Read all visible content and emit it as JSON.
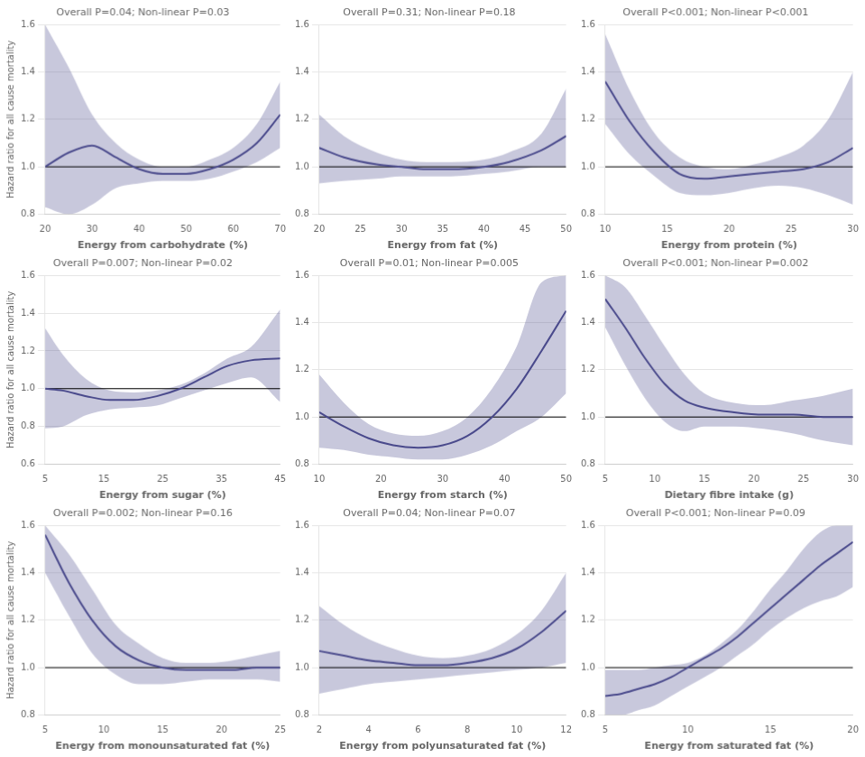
{
  "chart_data": [
    {
      "type": "line",
      "title": "Overall P=0.04; Non-linear P=0.03",
      "xlabel": "Energy from carbohydrate (%)",
      "ylabel": "Hazard ratio for all cause mortality",
      "x": [
        20,
        25,
        30,
        35,
        40,
        45,
        50,
        55,
        60,
        65,
        70
      ],
      "values": [
        1.0,
        1.06,
        1.09,
        1.04,
        0.99,
        0.97,
        0.97,
        0.99,
        1.03,
        1.1,
        1.22
      ],
      "ci_upper": [
        1.6,
        1.42,
        1.22,
        1.1,
        1.03,
        1.0,
        1.0,
        1.03,
        1.08,
        1.18,
        1.36
      ],
      "ci_lower": [
        0.83,
        0.8,
        0.84,
        0.91,
        0.93,
        0.94,
        0.94,
        0.95,
        0.98,
        1.02,
        1.08
      ],
      "color": "#4a4a8c",
      "reference_line": 1.0,
      "xlim": [
        20,
        70
      ],
      "xticks": [
        20,
        30,
        40,
        50,
        60,
        70
      ],
      "ylim": [
        0.8,
        1.6
      ],
      "yticks": [
        0.8,
        {
          "value": 1.0,
          "label": "1.0"
        },
        1.2,
        1.4,
        1.6
      ],
      "grid": "y"
    },
    {
      "type": "line",
      "title": "Overall P=0.31; Non-linear P=0.18",
      "xlabel": "Energy from fat (%)",
      "x": [
        20,
        23,
        27,
        30,
        33,
        36,
        40,
        43,
        47,
        50
      ],
      "values": [
        1.08,
        1.04,
        1.01,
        1.0,
        0.99,
        0.99,
        1.0,
        1.02,
        1.07,
        1.13
      ],
      "ci_upper": [
        1.22,
        1.13,
        1.06,
        1.03,
        1.02,
        1.02,
        1.03,
        1.06,
        1.14,
        1.33
      ],
      "ci_lower": [
        0.93,
        0.94,
        0.95,
        0.96,
        0.96,
        0.96,
        0.97,
        0.98,
        1.0,
        1.0
      ],
      "color": "#4a4a8c",
      "reference_line": 1.0,
      "xlim": [
        20,
        50
      ],
      "xticks": [
        20,
        25,
        30,
        35,
        40,
        45,
        50
      ],
      "ylim": [
        0.8,
        1.6
      ],
      "yticks": [
        0.8,
        {
          "value": 1.0,
          "label": "1.0"
        },
        1.2,
        1.4,
        1.6
      ],
      "grid": "y"
    },
    {
      "type": "line",
      "title": "Overall P<0.001; Non-linear P<0.001",
      "xlabel": "Energy from protein (%)",
      "x": [
        10,
        12,
        14,
        16,
        18,
        20,
        22,
        24,
        26,
        28,
        30
      ],
      "values": [
        1.36,
        1.19,
        1.06,
        0.97,
        0.95,
        0.96,
        0.97,
        0.98,
        0.99,
        1.02,
        1.08
      ],
      "ci_upper": [
        1.56,
        1.32,
        1.14,
        1.04,
        1.0,
        0.99,
        1.01,
        1.04,
        1.09,
        1.2,
        1.4
      ],
      "ci_lower": [
        1.18,
        1.05,
        0.96,
        0.89,
        0.88,
        0.89,
        0.91,
        0.92,
        0.91,
        0.88,
        0.84
      ],
      "color": "#4a4a8c",
      "reference_line": 1.0,
      "xlim": [
        10,
        30
      ],
      "xticks": [
        10,
        15,
        20,
        25,
        30
      ],
      "ylim": [
        0.8,
        1.6
      ],
      "yticks": [
        0.8,
        {
          "value": 1.0,
          "label": "1.0"
        },
        1.2,
        1.4,
        1.6
      ],
      "grid": "y"
    },
    {
      "type": "line",
      "title": "Overall P=0.007; Non-linear P=0.02",
      "xlabel": "Energy from sugar (%)",
      "ylabel": "Hazard ratio for all cause mortality",
      "x": [
        5,
        8,
        12,
        16,
        20,
        24,
        28,
        32,
        36,
        40,
        45
      ],
      "values": [
        1.0,
        0.99,
        0.96,
        0.94,
        0.94,
        0.96,
        1.0,
        1.06,
        1.12,
        1.15,
        1.16
      ],
      "ci_upper": [
        1.32,
        1.18,
        1.05,
        0.99,
        0.98,
        0.99,
        1.02,
        1.08,
        1.16,
        1.22,
        1.42
      ],
      "ci_lower": [
        0.79,
        0.8,
        0.86,
        0.89,
        0.9,
        0.91,
        0.95,
        0.99,
        1.03,
        1.06,
        0.93
      ],
      "color": "#4a4a8c",
      "reference_line": 1.0,
      "xlim": [
        5,
        45
      ],
      "xticks": [
        5,
        15,
        25,
        35,
        45
      ],
      "ylim": [
        0.6,
        1.6
      ],
      "yticks": [
        0.6,
        0.8,
        {
          "value": 1.0,
          "label": "1.0"
        },
        1.2,
        1.4,
        1.6
      ],
      "grid": "y"
    },
    {
      "type": "line",
      "title": "Overall P=0.01; Non-linear P=0.005",
      "xlabel": "Energy from starch (%)",
      "x": [
        10,
        14,
        18,
        22,
        26,
        30,
        34,
        38,
        42,
        46,
        50
      ],
      "values": [
        1.02,
        0.96,
        0.91,
        0.88,
        0.87,
        0.88,
        0.92,
        1.0,
        1.12,
        1.28,
        1.45
      ],
      "ci_upper": [
        1.18,
        1.06,
        0.97,
        0.93,
        0.92,
        0.94,
        1.0,
        1.12,
        1.3,
        1.57,
        1.6
      ],
      "ci_lower": [
        0.87,
        0.86,
        0.84,
        0.83,
        0.82,
        0.82,
        0.84,
        0.88,
        0.94,
        1.0,
        1.1
      ],
      "color": "#4a4a8c",
      "reference_line": 1.0,
      "xlim": [
        10,
        50
      ],
      "xticks": [
        10,
        20,
        30,
        40,
        50
      ],
      "ylim": [
        0.8,
        1.6
      ],
      "yticks": [
        0.8,
        {
          "value": 1.0,
          "label": "1.0"
        },
        1.2,
        1.4,
        1.6
      ],
      "grid": "y"
    },
    {
      "type": "line",
      "title": "Overall P<0.001; Non-linear P=0.002",
      "xlabel": "Dietary fibre intake (g)",
      "x": [
        5,
        7,
        9,
        11,
        13,
        15,
        18,
        21,
        24,
        27,
        30
      ],
      "values": [
        1.5,
        1.38,
        1.25,
        1.14,
        1.07,
        1.04,
        1.02,
        1.01,
        1.01,
        1.0,
        1.0
      ],
      "ci_upper": [
        1.6,
        1.55,
        1.43,
        1.3,
        1.18,
        1.1,
        1.06,
        1.05,
        1.07,
        1.09,
        1.12
      ],
      "ci_lower": [
        1.38,
        1.22,
        1.08,
        0.98,
        0.94,
        0.96,
        0.96,
        0.95,
        0.93,
        0.9,
        0.88
      ],
      "color": "#4a4a8c",
      "reference_line": 1.0,
      "xlim": [
        5,
        30
      ],
      "xticks": [
        5,
        10,
        15,
        20,
        25,
        30
      ],
      "ylim": [
        0.8,
        1.6
      ],
      "yticks": [
        0.8,
        {
          "value": 1.0,
          "label": "1.0"
        },
        1.2,
        1.4,
        1.6
      ],
      "grid": "y"
    },
    {
      "type": "line",
      "title": "Overall P=0.002; Non-linear P=0.16",
      "xlabel": "Energy from monounsaturated fat (%)",
      "ylabel": "Hazard ratio for all cause mortality",
      "x": [
        5,
        7,
        9,
        11,
        13,
        15,
        17,
        19,
        21,
        23,
        25
      ],
      "values": [
        1.56,
        1.36,
        1.2,
        1.09,
        1.03,
        1.0,
        0.99,
        0.99,
        0.99,
        1.0,
        1.0
      ],
      "ci_upper": [
        1.6,
        1.48,
        1.33,
        1.18,
        1.1,
        1.04,
        1.02,
        1.02,
        1.03,
        1.05,
        1.07
      ],
      "ci_lower": [
        1.4,
        1.22,
        1.06,
        0.97,
        0.93,
        0.93,
        0.94,
        0.95,
        0.95,
        0.95,
        0.94
      ],
      "color": "#4a4a8c",
      "reference_line": 1.0,
      "xlim": [
        5,
        25
      ],
      "xticks": [
        5,
        10,
        15,
        20,
        25
      ],
      "ylim": [
        0.8,
        1.6
      ],
      "yticks": [
        0.8,
        {
          "value": 1.0,
          "label": "1.0"
        },
        1.2,
        1.4,
        1.6
      ],
      "grid": "y"
    },
    {
      "type": "line",
      "title": "Overall P=0.04; Non-linear P=0.07",
      "xlabel": "Energy from polyunsaturated fat (%)",
      "x": [
        2,
        3,
        4,
        5,
        6,
        7,
        8,
        9,
        10,
        11,
        12
      ],
      "values": [
        1.07,
        1.05,
        1.03,
        1.02,
        1.01,
        1.01,
        1.02,
        1.04,
        1.08,
        1.15,
        1.24
      ],
      "ci_upper": [
        1.26,
        1.18,
        1.12,
        1.08,
        1.05,
        1.04,
        1.05,
        1.08,
        1.14,
        1.24,
        1.4
      ],
      "ci_lower": [
        0.89,
        0.91,
        0.93,
        0.94,
        0.95,
        0.96,
        0.97,
        0.98,
        0.99,
        1.0,
        1.02
      ],
      "color": "#4a4a8c",
      "reference_line": 1.0,
      "xlim": [
        2,
        12
      ],
      "xticks": [
        2,
        4,
        6,
        8,
        10,
        12
      ],
      "ylim": [
        0.8,
        1.6
      ],
      "yticks": [
        0.8,
        {
          "value": 1.0,
          "label": "1.0"
        },
        1.2,
        1.4,
        1.6
      ],
      "grid": "y"
    },
    {
      "type": "line",
      "title": "Overall P<0.001; Non-linear P=0.09",
      "xlabel": "Energy from saturated fat (%)",
      "x": [
        5,
        6,
        7,
        8,
        9,
        10,
        11,
        12,
        13,
        14,
        15,
        16,
        17,
        18,
        19,
        20
      ],
      "values": [
        0.88,
        0.89,
        0.91,
        0.93,
        0.96,
        1.0,
        1.04,
        1.08,
        1.13,
        1.19,
        1.25,
        1.31,
        1.37,
        1.43,
        1.48,
        1.53
      ],
      "ci_upper": [
        0.99,
        0.99,
        0.99,
        1.0,
        1.01,
        1.02,
        1.05,
        1.1,
        1.16,
        1.24,
        1.33,
        1.41,
        1.5,
        1.57,
        1.6,
        1.6
      ],
      "ci_lower": [
        0.8,
        0.8,
        0.82,
        0.84,
        0.88,
        0.92,
        0.96,
        1.0,
        1.05,
        1.1,
        1.16,
        1.21,
        1.25,
        1.28,
        1.3,
        1.34
      ],
      "color": "#4a4a8c",
      "reference_line": 1.0,
      "xlim": [
        5,
        20
      ],
      "xticks": [
        5,
        10,
        15,
        20
      ],
      "ylim": [
        0.8,
        1.6
      ],
      "yticks": [
        0.8,
        {
          "value": 1.0,
          "label": "1.0"
        },
        1.2,
        1.4,
        1.6
      ],
      "grid": "y"
    }
  ]
}
